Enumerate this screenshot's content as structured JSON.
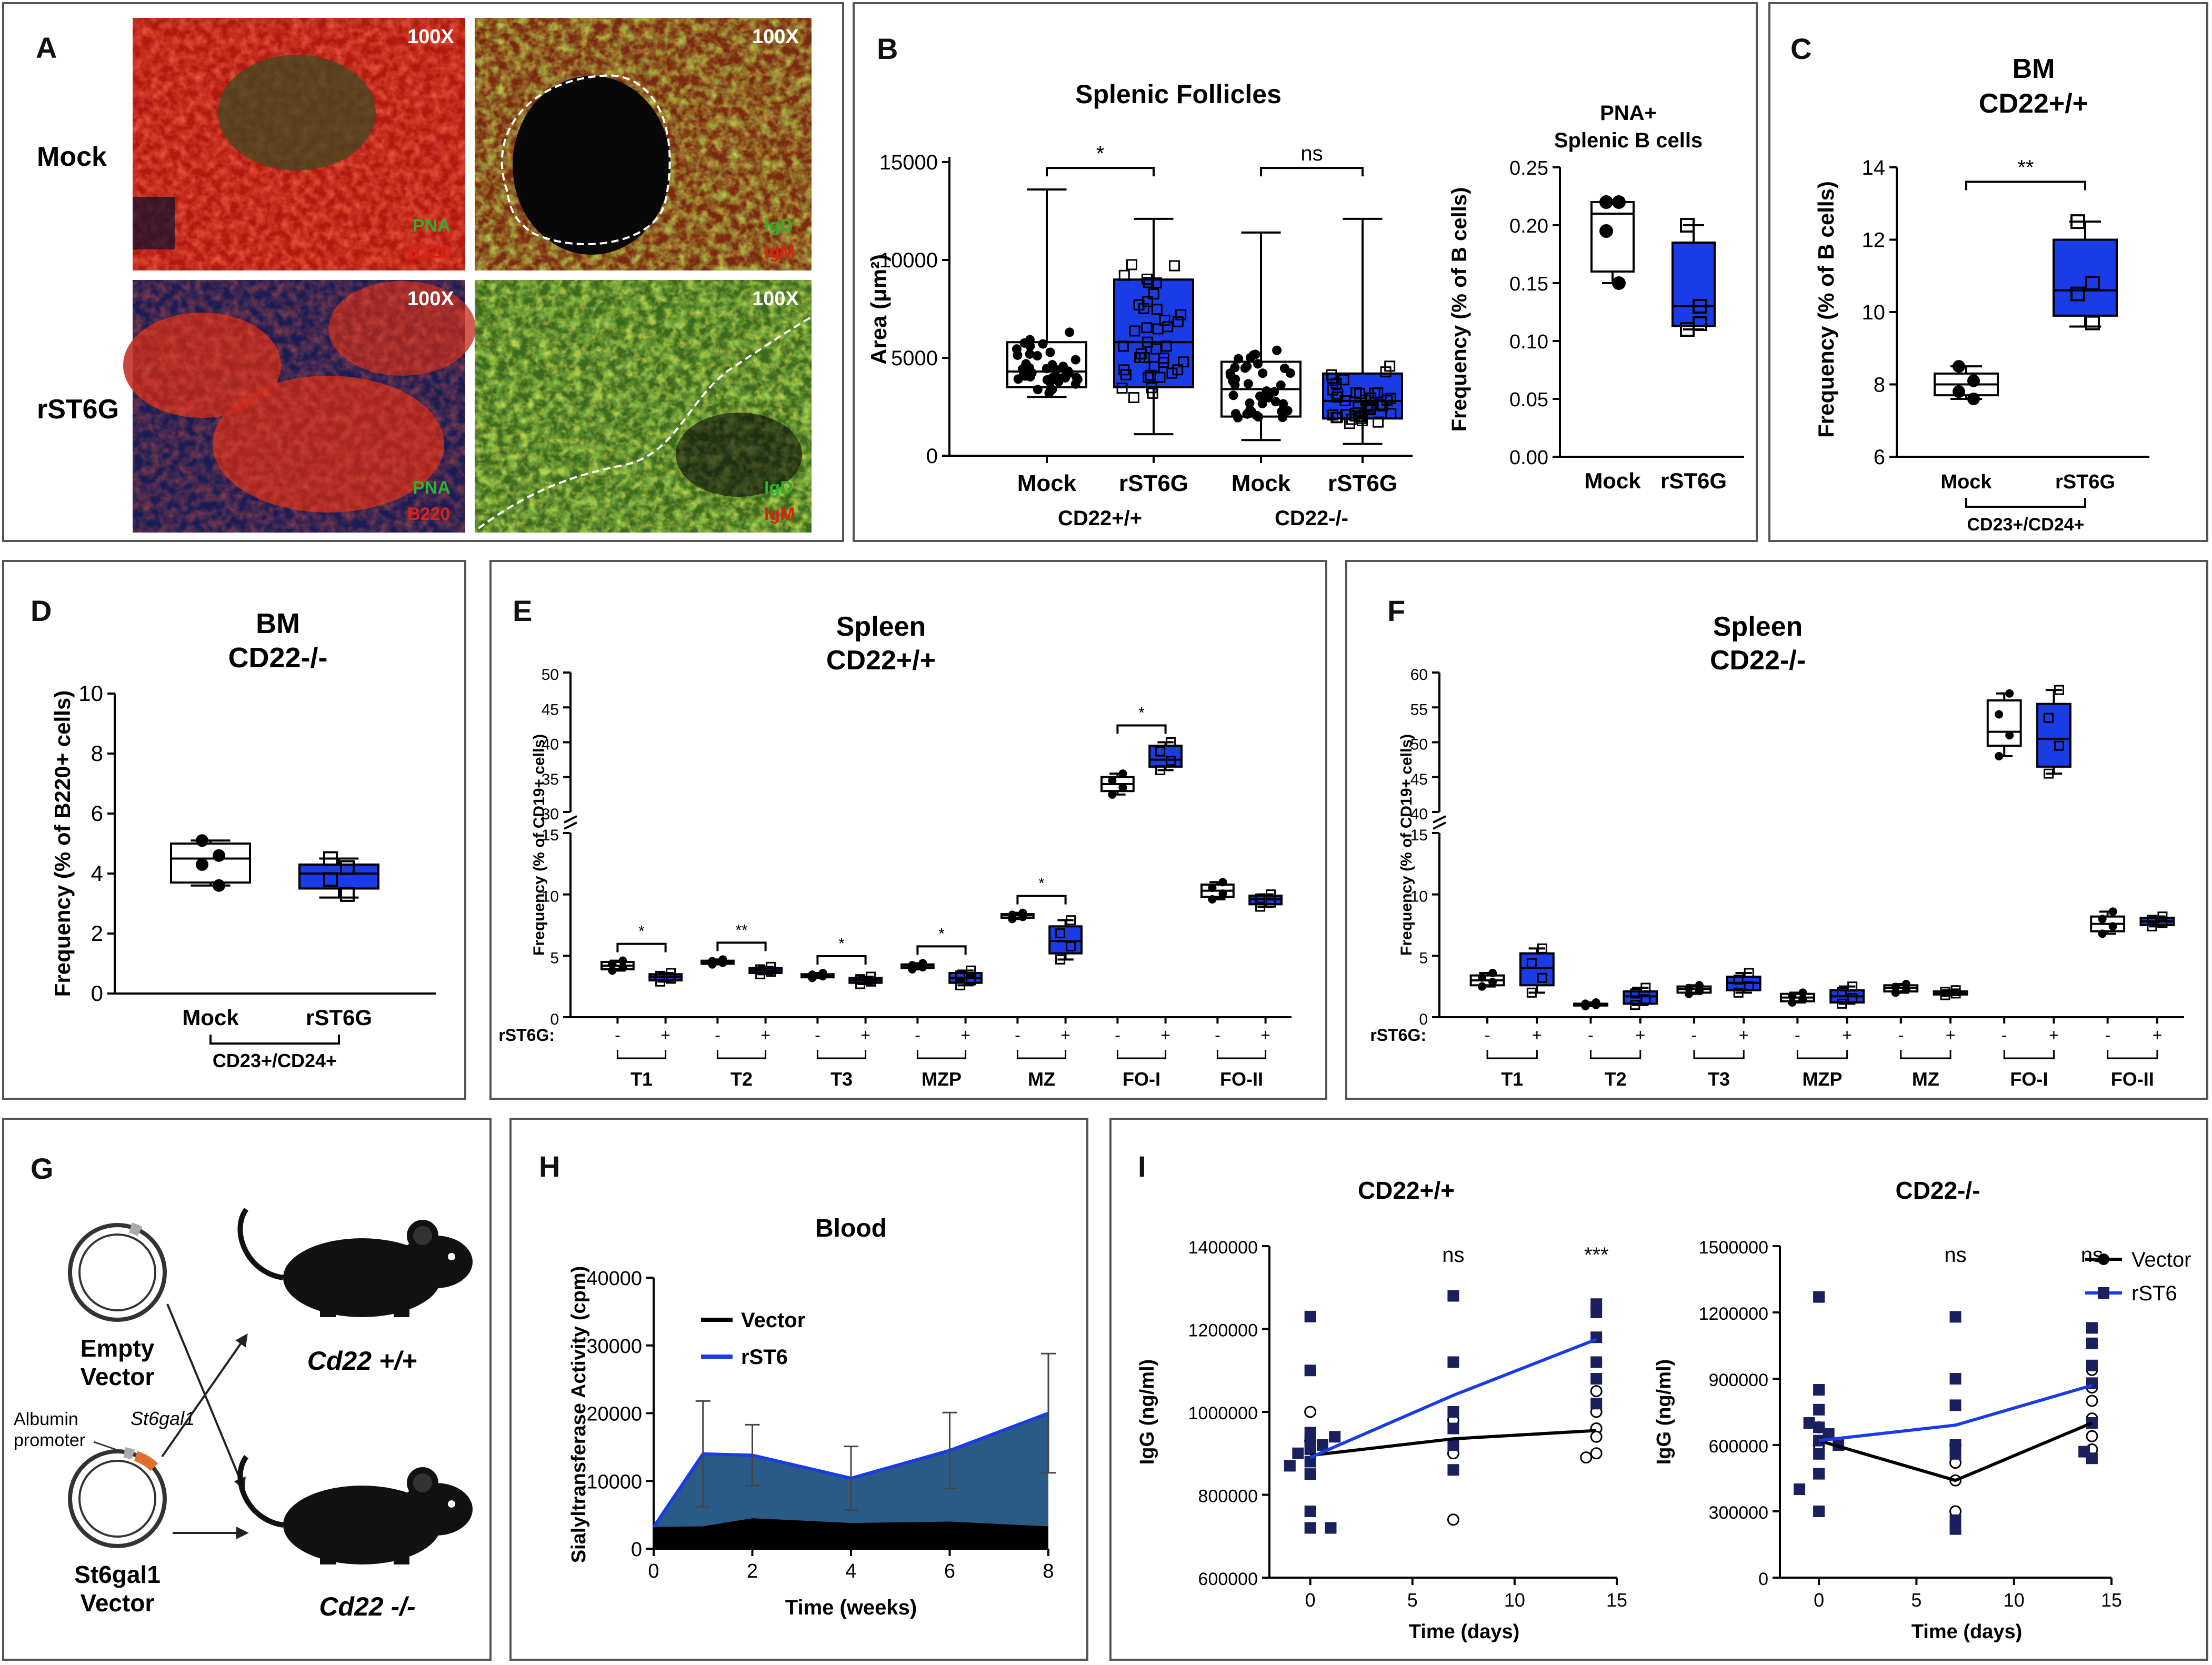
{
  "panel_letters": {
    "a": "A",
    "b": "B",
    "c": "C",
    "d": "D",
    "e": "E",
    "f": "F",
    "g": "G",
    "h": "H",
    "i": "I"
  },
  "colors": {
    "blue": "#1a3ce6",
    "navy": "#1a1f5e",
    "fill": "#2a5a86",
    "red": "#e02010",
    "green": "#2fb02f"
  },
  "panel_a": {
    "mag": "100X",
    "row_mock": "Mock",
    "row_rst6g": "rST6G",
    "stain_pna": "PNA",
    "stain_b220": "B220",
    "stain_igd": "IgD",
    "stain_igm": "IgM"
  },
  "panel_g": {
    "empty_vector_1": "Empty",
    "empty_vector_2": "Vector",
    "albumin_1": "Albumin",
    "albumin_2": "promoter",
    "st6gal1_gene": "St6gal1",
    "st6gal1_vector_1": "St6gal1",
    "st6gal1_vector_2": "Vector",
    "mouse_wt": "Cd22 +/+",
    "mouse_ko": "Cd22 -/-"
  },
  "chart_data": [
    {
      "id": "B1",
      "type": "box",
      "title": "Splenic Follicles",
      "ylabel": "Area (μm²)",
      "ylim": [
        0,
        15000
      ],
      "yticks": [
        0,
        5000,
        10000,
        15000
      ],
      "categories": [
        "Mock",
        "rST6G",
        "Mock",
        "rST6G"
      ],
      "groups": [
        "CD22+/+",
        "CD22-/-"
      ],
      "boxes": [
        {
          "min": 3000,
          "q1": 3500,
          "median": 4300,
          "q3": 5800,
          "max": 13600
        },
        {
          "min": 1100,
          "q1": 3500,
          "median": 5800,
          "q3": 9000,
          "max": 12100
        },
        {
          "min": 800,
          "q1": 2000,
          "median": 3400,
          "q3": 4800,
          "max": 11400
        },
        {
          "min": 600,
          "q1": 1900,
          "median": 2800,
          "q3": 4200,
          "max": 12100
        }
      ],
      "annotations": [
        {
          "label": "*",
          "between": [
            0,
            1
          ],
          "y": 14700
        },
        {
          "label": "ns",
          "between": [
            2,
            3
          ],
          "y": 14700
        }
      ]
    },
    {
      "id": "B2",
      "type": "box",
      "title": "PNA+",
      "title2": "Splenic B cells",
      "ylabel": "Frequency (% of B cells)",
      "ylim": [
        0,
        0.25
      ],
      "yticks": [
        0.0,
        0.05,
        0.1,
        0.15,
        0.2,
        0.25
      ],
      "categories": [
        "Mock",
        "rST6G"
      ],
      "boxes": [
        {
          "min": 0.15,
          "q1": 0.16,
          "median": 0.21,
          "q3": 0.22,
          "max": 0.22
        },
        {
          "min": 0.11,
          "q1": 0.113,
          "median": 0.13,
          "q3": 0.185,
          "max": 0.2
        }
      ],
      "points": [
        [
          0.22,
          0.22,
          0.195,
          0.15
        ],
        [
          0.2,
          0.13,
          0.11,
          0.115
        ]
      ]
    },
    {
      "id": "C",
      "type": "box",
      "title": "BM",
      "title2": "CD22+/+",
      "ylabel": "Frequency (% of  B cells)",
      "ylim": [
        6,
        14
      ],
      "yticks": [
        6,
        8,
        10,
        12,
        14
      ],
      "categories": [
        "Mock",
        "rST6G"
      ],
      "group": "CD23+/CD24+",
      "boxes": [
        {
          "min": 7.6,
          "q1": 7.7,
          "median": 8.0,
          "q3": 8.3,
          "max": 8.5
        },
        {
          "min": 9.6,
          "q1": 9.9,
          "median": 10.6,
          "q3": 12.0,
          "max": 12.5
        }
      ],
      "points": [
        [
          8.5,
          8.1,
          7.8,
          7.6
        ],
        [
          12.5,
          10.8,
          10.5,
          9.7
        ]
      ],
      "annotations": [
        {
          "label": "**",
          "between": [
            0,
            1
          ],
          "y": 13.6
        }
      ]
    },
    {
      "id": "D",
      "type": "box",
      "title": "BM",
      "title2": "CD22-/-",
      "ylabel": "Frequency (% of B220+ cells)",
      "ylim": [
        0,
        10
      ],
      "yticks": [
        0,
        2,
        4,
        6,
        8,
        10
      ],
      "categories": [
        "Mock",
        "rST6G"
      ],
      "group": "CD23+/CD24+",
      "boxes": [
        {
          "min": 3.6,
          "q1": 3.7,
          "median": 4.5,
          "q3": 5.0,
          "max": 5.1
        },
        {
          "min": 3.2,
          "q1": 3.5,
          "median": 4.0,
          "q3": 4.3,
          "max": 4.5
        }
      ],
      "points": [
        [
          5.1,
          4.6,
          4.3,
          3.6
        ],
        [
          4.5,
          4.2,
          3.8,
          3.3
        ]
      ]
    },
    {
      "id": "E",
      "type": "box",
      "title": "Spleen",
      "title2": "CD22+/+",
      "ylabel": "Frequency (% of CD19+ cells)",
      "ylim_lower": [
        0,
        15
      ],
      "yticks_lower": [
        0,
        5,
        10,
        15
      ],
      "ylim_upper": [
        30,
        50
      ],
      "yticks_upper": [
        30,
        35,
        40,
        45,
        50
      ],
      "treatment_label": "rST6G:",
      "minus": "-",
      "plus": "+",
      "groups": [
        "T1",
        "T2",
        "T3",
        "MZP",
        "MZ",
        "FO-I",
        "FO-II"
      ],
      "boxes": [
        [
          {
            "min": 3.8,
            "q1": 3.9,
            "median": 4.2,
            "q3": 4.5,
            "max": 4.6
          },
          {
            "min": 2.9,
            "q1": 3.0,
            "median": 3.3,
            "q3": 3.5,
            "max": 3.6
          }
        ],
        [
          {
            "min": 4.3,
            "q1": 4.35,
            "median": 4.5,
            "q3": 4.6,
            "max": 4.7
          },
          {
            "min": 3.5,
            "q1": 3.6,
            "median": 3.8,
            "q3": 4.0,
            "max": 4.1
          }
        ],
        [
          {
            "min": 3.2,
            "q1": 3.25,
            "median": 3.4,
            "q3": 3.5,
            "max": 3.6
          },
          {
            "min": 2.7,
            "q1": 2.8,
            "median": 3.0,
            "q3": 3.2,
            "max": 3.3
          }
        ],
        [
          {
            "min": 3.9,
            "q1": 4.0,
            "median": 4.2,
            "q3": 4.3,
            "max": 4.4
          },
          {
            "min": 2.6,
            "q1": 2.8,
            "median": 3.2,
            "q3": 3.6,
            "max": 3.8
          }
        ],
        [
          {
            "min": 8.0,
            "q1": 8.1,
            "median": 8.3,
            "q3": 8.4,
            "max": 8.5
          },
          {
            "min": 4.7,
            "q1": 5.2,
            "median": 6.2,
            "q3": 7.4,
            "max": 7.9
          }
        ],
        [
          {
            "min": 32.5,
            "q1": 33.0,
            "median": 34.0,
            "q3": 35.0,
            "max": 35.5
          },
          {
            "min": 36.0,
            "q1": 36.5,
            "median": 37.5,
            "q3": 39.5,
            "max": 40.0
          }
        ],
        [
          {
            "min": 9.6,
            "q1": 9.8,
            "median": 10.3,
            "q3": 10.8,
            "max": 11.0
          },
          {
            "min": 9.0,
            "q1": 9.2,
            "median": 9.6,
            "q3": 9.9,
            "max": 10.0
          }
        ]
      ],
      "annotations": [
        "*",
        "**",
        "*",
        "*",
        "*",
        "*",
        ""
      ]
    },
    {
      "id": "F",
      "type": "box",
      "title": "Spleen",
      "title2": "CD22-/-",
      "ylabel": "Frequency (% of CD19+ cells)",
      "ylim_lower": [
        0,
        15
      ],
      "yticks_lower": [
        0,
        5,
        10,
        15
      ],
      "ylim_upper": [
        40,
        60
      ],
      "yticks_upper": [
        40,
        45,
        50,
        55,
        60
      ],
      "treatment_label": "rST6G:",
      "minus": "-",
      "plus": "+",
      "groups": [
        "T1",
        "T2",
        "T3",
        "MZP",
        "MZ",
        "FO-I",
        "FO-II"
      ],
      "boxes": [
        [
          {
            "min": 2.5,
            "q1": 2.6,
            "median": 3.0,
            "q3": 3.4,
            "max": 3.6
          },
          {
            "min": 2.0,
            "q1": 2.6,
            "median": 4.0,
            "q3": 5.2,
            "max": 5.6
          }
        ],
        [
          {
            "min": 0.9,
            "q1": 0.95,
            "median": 1.0,
            "q3": 1.1,
            "max": 1.2
          },
          {
            "min": 1.0,
            "q1": 1.1,
            "median": 1.7,
            "q3": 2.1,
            "max": 2.4
          }
        ],
        [
          {
            "min": 1.9,
            "q1": 2.0,
            "median": 2.3,
            "q3": 2.5,
            "max": 2.6
          },
          {
            "min": 2.0,
            "q1": 2.2,
            "median": 2.8,
            "q3": 3.3,
            "max": 3.6
          }
        ],
        [
          {
            "min": 1.2,
            "q1": 1.3,
            "median": 1.6,
            "q3": 1.9,
            "max": 2.0
          },
          {
            "min": 1.1,
            "q1": 1.2,
            "median": 1.7,
            "q3": 2.2,
            "max": 2.5
          }
        ],
        [
          {
            "min": 2.0,
            "q1": 2.1,
            "median": 2.4,
            "q3": 2.6,
            "max": 2.7
          },
          {
            "min": 1.8,
            "q1": 1.85,
            "median": 2.0,
            "q3": 2.1,
            "max": 2.2
          }
        ],
        [
          {
            "min": 48.0,
            "q1": 49.5,
            "median": 51.5,
            "q3": 56.0,
            "max": 57.0
          },
          {
            "min": 45.5,
            "q1": 46.5,
            "median": 50.5,
            "q3": 55.5,
            "max": 57.5
          }
        ],
        [
          {
            "min": 6.8,
            "q1": 7.0,
            "median": 7.6,
            "q3": 8.2,
            "max": 8.6
          },
          {
            "min": 7.4,
            "q1": 7.5,
            "median": 7.8,
            "q3": 8.1,
            "max": 8.2
          }
        ]
      ]
    },
    {
      "id": "H",
      "type": "area",
      "title": "Blood",
      "xlabel": "Time (weeks)",
      "ylabel": "Sialyltransferase Activity (cpm)",
      "xlim": [
        0,
        8
      ],
      "ylim": [
        0,
        40000
      ],
      "xticks": [
        0,
        2,
        4,
        6,
        8
      ],
      "yticks": [
        0,
        10000,
        20000,
        30000,
        40000
      ],
      "series": [
        {
          "name": "Vector",
          "x": [
            0,
            1,
            2,
            4,
            6,
            8
          ],
          "values": [
            3200,
            3300,
            4500,
            3800,
            4000,
            3300
          ]
        },
        {
          "name": "rST6",
          "x": [
            0,
            1,
            2,
            4,
            6,
            8
          ],
          "values": [
            3200,
            14000,
            13800,
            10400,
            14500,
            20000
          ],
          "err": [
            0,
            7800,
            4500,
            4700,
            5600,
            8800
          ]
        }
      ]
    },
    {
      "id": "I1",
      "type": "scatter",
      "title": "CD22+/+",
      "xlabel": "Time (days)",
      "ylabel": "IgG (ng/ml)",
      "xlim": [
        -2,
        15
      ],
      "ylim": [
        600000,
        1400000
      ],
      "xticks": [
        0,
        5,
        10,
        15
      ],
      "yticks": [
        600000,
        800000,
        1000000,
        1200000,
        1400000
      ],
      "lines": [
        {
          "name": "Vector",
          "x": [
            0,
            7,
            14
          ],
          "values": [
            895000,
            935000,
            955000
          ]
        },
        {
          "name": "rST6",
          "x": [
            0,
            7,
            14
          ],
          "values": [
            890000,
            1040000,
            1175000
          ]
        }
      ],
      "points_rST6": [
        [
          0,
          1230000
        ],
        [
          0,
          1100000
        ],
        [
          0,
          950000
        ],
        [
          0,
          930000
        ],
        [
          0,
          910000
        ],
        [
          0,
          880000
        ],
        [
          0,
          850000
        ],
        [
          0,
          760000
        ],
        [
          0,
          720000
        ],
        [
          -0.6,
          900000
        ],
        [
          0.6,
          920000
        ],
        [
          1.2,
          940000
        ],
        [
          -1,
          870000
        ],
        [
          1,
          720000
        ],
        [
          7,
          1280000
        ],
        [
          7,
          1120000
        ],
        [
          7,
          1000000
        ],
        [
          7,
          960000
        ],
        [
          7,
          920000
        ],
        [
          7,
          860000
        ],
        [
          14,
          1260000
        ],
        [
          14,
          1240000
        ],
        [
          14,
          1180000
        ],
        [
          14,
          1120000
        ],
        [
          14,
          1080000
        ],
        [
          14,
          1020000
        ]
      ],
      "points_vector": [
        [
          0,
          930000
        ],
        [
          0,
          1000000
        ],
        [
          7,
          980000
        ],
        [
          7,
          900000
        ],
        [
          7,
          740000
        ],
        [
          14,
          1050000
        ],
        [
          14,
          1000000
        ],
        [
          14,
          960000
        ],
        [
          14,
          940000
        ],
        [
          14,
          900000
        ],
        [
          13.5,
          890000
        ]
      ],
      "annotations": [
        {
          "label": "ns",
          "x": 7
        },
        {
          "label": "***",
          "x": 14
        }
      ]
    },
    {
      "id": "I2",
      "type": "scatter",
      "title": "CD22-/-",
      "xlabel": "Time (days)",
      "ylabel": "IgG (ng/ml)",
      "xlim": [
        -2,
        15
      ],
      "ylim": [
        0,
        1500000
      ],
      "xticks": [
        0,
        5,
        10,
        15
      ],
      "yticks": [
        0,
        300000,
        600000,
        900000,
        1200000,
        1500000
      ],
      "legend": [
        "Vector",
        "rST6"
      ],
      "lines": [
        {
          "name": "Vector",
          "x": [
            0,
            7,
            14
          ],
          "values": [
            620000,
            440000,
            700000
          ]
        },
        {
          "name": "rST6",
          "x": [
            0,
            7,
            14
          ],
          "values": [
            620000,
            690000,
            870000
          ]
        }
      ],
      "points_rST6": [
        [
          0,
          1270000
        ],
        [
          0,
          850000
        ],
        [
          0,
          760000
        ],
        [
          0,
          680000
        ],
        [
          0,
          620000
        ],
        [
          0,
          560000
        ],
        [
          0,
          470000
        ],
        [
          0,
          300000
        ],
        [
          -0.5,
          700000
        ],
        [
          0.5,
          650000
        ],
        [
          1,
          600000
        ],
        [
          -1,
          400000
        ],
        [
          7,
          1180000
        ],
        [
          7,
          900000
        ],
        [
          7,
          780000
        ],
        [
          7,
          600000
        ],
        [
          7,
          560000
        ],
        [
          7,
          260000
        ],
        [
          7,
          220000
        ],
        [
          14,
          1130000
        ],
        [
          14,
          1060000
        ],
        [
          14,
          960000
        ],
        [
          14,
          880000
        ],
        [
          14,
          700000
        ],
        [
          13.6,
          570000
        ],
        [
          14,
          540000
        ]
      ],
      "points_vector": [
        [
          0,
          680000
        ],
        [
          0,
          600000
        ],
        [
          7,
          600000
        ],
        [
          7,
          520000
        ],
        [
          7,
          440000
        ],
        [
          7,
          300000
        ],
        [
          14,
          940000
        ],
        [
          14,
          860000
        ],
        [
          14,
          800000
        ],
        [
          14,
          720000
        ],
        [
          14,
          640000
        ],
        [
          14,
          580000
        ]
      ],
      "annotations": [
        {
          "label": "ns",
          "x": 7
        },
        {
          "label": "ns",
          "x": 14
        }
      ]
    }
  ]
}
